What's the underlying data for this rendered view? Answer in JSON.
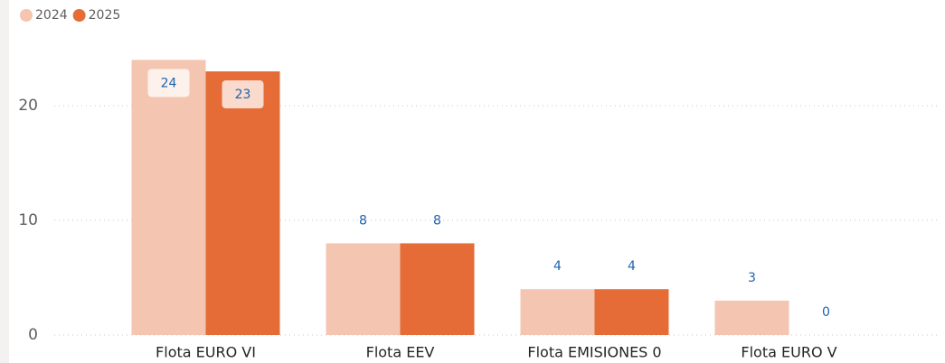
{
  "chart_data": {
    "type": "bar",
    "categories": [
      "Flota EURO VI",
      "Flota EEV",
      "Flota EMISIONES 0",
      "Flota EURO V"
    ],
    "series": [
      {
        "name": "2024",
        "color": "#f4c5b0",
        "values": [
          24,
          8,
          4,
          3
        ]
      },
      {
        "name": "2025",
        "color": "#e56c37",
        "values": [
          23,
          8,
          4,
          0
        ]
      }
    ],
    "ylim": [
      0,
      24.5
    ],
    "yticks": [
      0,
      10,
      20
    ],
    "grid": true,
    "legend": "top-left"
  }
}
